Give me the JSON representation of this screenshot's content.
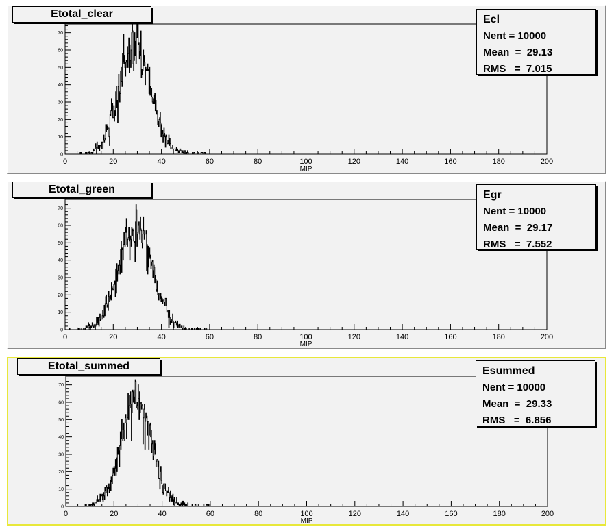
{
  "pads": [
    {
      "title": "Etotal_clear",
      "stats": {
        "name": "Ecl",
        "nent_label": "Nent = 10000",
        "mean_label": "Mean  =  29.13",
        "rms_label": "RMS   =  7.015"
      },
      "xlabel": "MIP",
      "selected": false
    },
    {
      "title": "Etotal_green",
      "stats": {
        "name": "Egr",
        "nent_label": "Nent = 10000",
        "mean_label": "Mean  =  29.17",
        "rms_label": "RMS   =  7.552"
      },
      "xlabel": "MIP",
      "selected": false
    },
    {
      "title": "Etotal_summed",
      "stats": {
        "name": "Esummed",
        "nent_label": "Nent = 10000",
        "mean_label": "Mean  =  29.33",
        "rms_label": "RMS   =  6.856"
      },
      "xlabel": "MIP",
      "selected": true
    }
  ],
  "chart_data": [
    {
      "type": "histogram",
      "title": "Etotal_clear",
      "xlabel": "MIP",
      "xlim": [
        0,
        200
      ],
      "ylim": [
        0,
        75
      ],
      "x_ticks": [
        0,
        20,
        40,
        60,
        80,
        100,
        120,
        140,
        160,
        180,
        200
      ],
      "y_ticks": [
        0,
        10,
        20,
        30,
        40,
        50,
        60,
        70
      ],
      "entries": 10000,
      "mean": 29.13,
      "rms": 7.015,
      "peak": 76,
      "grid": false,
      "legend": "top-right stats box"
    },
    {
      "type": "histogram",
      "title": "Etotal_green",
      "xlabel": "MIP",
      "xlim": [
        0,
        200
      ],
      "ylim": [
        0,
        75
      ],
      "x_ticks": [
        0,
        20,
        40,
        60,
        80,
        100,
        120,
        140,
        160,
        180,
        200
      ],
      "y_ticks": [
        0,
        10,
        20,
        30,
        40,
        50,
        60,
        70
      ],
      "entries": 10000,
      "mean": 29.17,
      "rms": 7.552,
      "peak": 72,
      "grid": false,
      "legend": "top-right stats box"
    },
    {
      "type": "histogram",
      "title": "Etotal_summed",
      "xlabel": "MIP",
      "xlim": [
        0,
        200
      ],
      "ylim": [
        0,
        75
      ],
      "x_ticks": [
        0,
        20,
        40,
        60,
        80,
        100,
        120,
        140,
        160,
        180,
        200
      ],
      "y_ticks": [
        0,
        10,
        20,
        30,
        40,
        50,
        60,
        70
      ],
      "entries": 10000,
      "mean": 29.33,
      "rms": 6.856,
      "peak": 76,
      "grid": false,
      "legend": "top-right stats box"
    }
  ]
}
